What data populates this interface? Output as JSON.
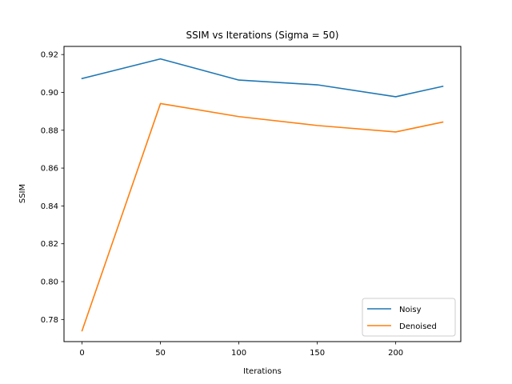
{
  "chart_data": {
    "type": "line",
    "title": "SSIM vs Iterations (Sigma = 50)",
    "xlabel": "Iterations",
    "ylabel": "SSIM",
    "x": [
      0,
      50,
      100,
      150,
      200,
      230
    ],
    "xlim": [
      -11.5,
      241.5
    ],
    "ylim": [
      0.7683,
      0.9243
    ],
    "xticks": [
      0,
      50,
      100,
      150,
      200
    ],
    "yticks": [
      0.78,
      0.8,
      0.82,
      0.84,
      0.86,
      0.88,
      0.9,
      0.92
    ],
    "grid": false,
    "legend_position": "lower-right",
    "series": [
      {
        "name": "Noisy",
        "color": "#1f77b4",
        "values": [
          0.9073,
          0.9177,
          0.9065,
          0.904,
          0.8977,
          0.9032
        ]
      },
      {
        "name": "Denoised",
        "color": "#ff7f0e",
        "values": [
          0.774,
          0.8941,
          0.8872,
          0.8825,
          0.8791,
          0.8843
        ]
      }
    ]
  }
}
